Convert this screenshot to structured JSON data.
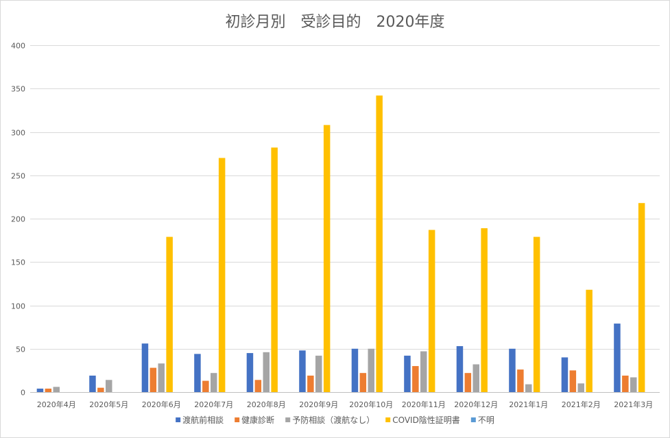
{
  "chart_data": {
    "type": "bar",
    "title": "初診月別　受診目的　2020年度",
    "xlabel": "",
    "ylabel": "",
    "ylim": [
      0,
      400
    ],
    "yticks": [
      0,
      50,
      100,
      150,
      200,
      250,
      300,
      350,
      400
    ],
    "grid": true,
    "legend_position": "bottom",
    "categories": [
      "2020年4月",
      "2020年5月",
      "2020年6月",
      "2020年7月",
      "2020年8月",
      "2020年9月",
      "2020年10月",
      "2020年11月",
      "2020年12月",
      "2021年1月",
      "2021年2月",
      "2021年3月"
    ],
    "series": [
      {
        "name": "渡航前相談",
        "color": "#4472c4",
        "values": [
          4,
          19,
          56,
          44,
          45,
          48,
          50,
          42,
          53,
          50,
          40,
          79
        ]
      },
      {
        "name": "健康診断",
        "color": "#ed7d31",
        "values": [
          4,
          5,
          28,
          13,
          14,
          19,
          22,
          30,
          22,
          26,
          25,
          19
        ]
      },
      {
        "name": "予防相談（渡航なし）",
        "color": "#a5a5a5",
        "values": [
          6,
          14,
          33,
          22,
          46,
          42,
          50,
          47,
          32,
          9,
          10,
          17
        ]
      },
      {
        "name": "COVID陰性証明書",
        "color": "#ffc000",
        "values": [
          0,
          0,
          179,
          270,
          282,
          308,
          342,
          187,
          189,
          179,
          118,
          218
        ]
      },
      {
        "name": "不明",
        "color": "#5b9bd5",
        "values": [
          0,
          0,
          0,
          0,
          0,
          0,
          0,
          0,
          0,
          0,
          0,
          0
        ]
      }
    ]
  }
}
